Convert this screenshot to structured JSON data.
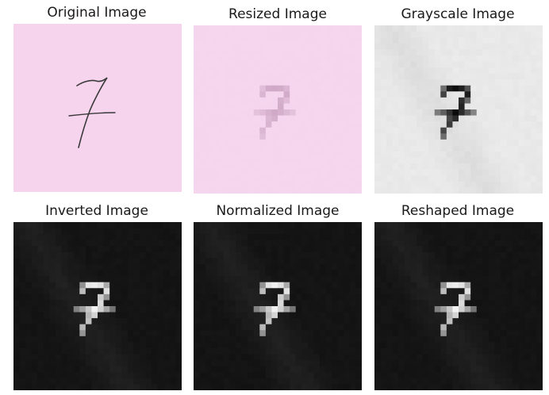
{
  "figure": {
    "panels": [
      {
        "title": "Original Image",
        "kind": "original",
        "digit": "7"
      },
      {
        "title": "Resized Image",
        "kind": "resized",
        "digit": "7"
      },
      {
        "title": "Grayscale Image",
        "kind": "grayscale",
        "digit": "7"
      },
      {
        "title": "Inverted Image",
        "kind": "inverted",
        "digit": "7"
      },
      {
        "title": "Normalized Image",
        "kind": "normalized",
        "digit": "7"
      },
      {
        "title": "Reshaped Image",
        "kind": "reshaped",
        "digit": "7"
      }
    ],
    "colors": {
      "paper": "#f7d4ee",
      "ink": "#3a3a3a",
      "gray_bg": "#e6e6e6",
      "dark_bg": "#161616",
      "stroke_light": "#dcdcdc"
    }
  }
}
